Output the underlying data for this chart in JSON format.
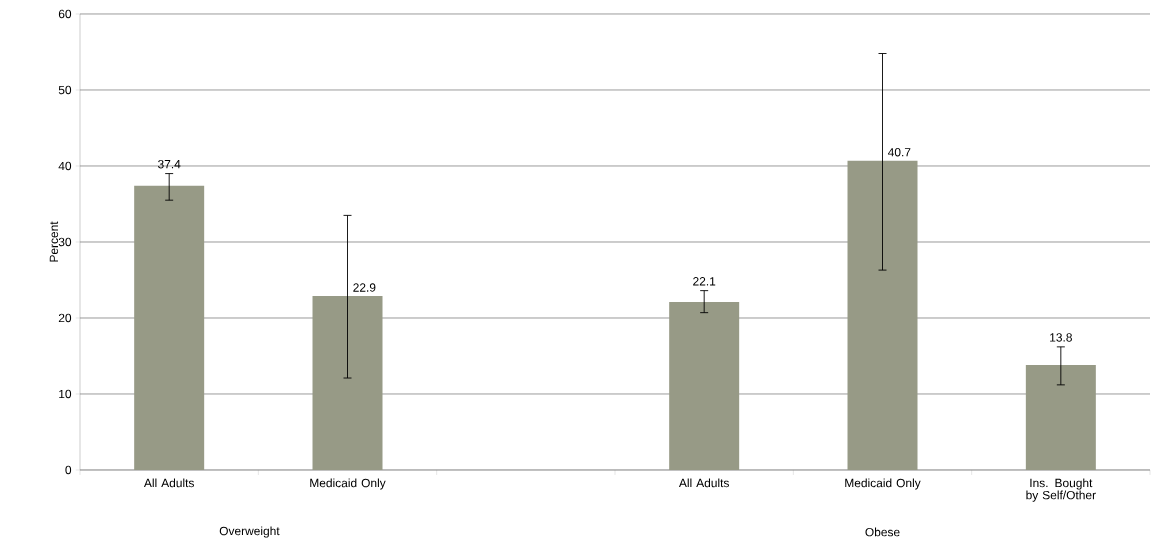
{
  "chart_data": {
    "type": "bar",
    "ylabel": "Percent",
    "categories": [
      "All Adults",
      "Medicaid Only",
      null,
      "All Adults",
      "Medicaid Only",
      "Ins. Bought by Self/Other"
    ],
    "values": [
      37.4,
      22.9,
      null,
      22.1,
      40.7,
      13.8
    ],
    "errors": [
      [
        35.5,
        39.0
      ],
      [
        12.1,
        33.5
      ],
      null,
      [
        20.7,
        23.6
      ],
      [
        26.3,
        54.8
      ],
      [
        11.2,
        16.2
      ]
    ],
    "color": "#979a86",
    "value_labels": [
      "37.4",
      "22.9",
      null,
      "22.1",
      "40.7",
      "13.8"
    ],
    "ylim": [
      0,
      60
    ],
    "yticks": [
      0,
      10,
      20,
      30,
      40,
      50,
      60
    ],
    "grid": "y",
    "annotations": [
      "Overweight",
      "Obese"
    ]
  }
}
